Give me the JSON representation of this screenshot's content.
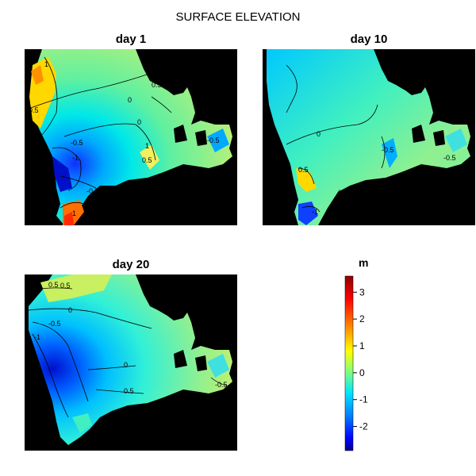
{
  "main_title": "SURFACE ELEVATION",
  "colorbar": {
    "label": "m"
  },
  "chart_data": {
    "type": "heatmap",
    "title": "SURFACE ELEVATION",
    "colorbar": {
      "label": "m",
      "ticks": [
        3,
        2,
        1,
        0,
        -1,
        -2
      ],
      "range": [
        -2.9,
        3.6
      ]
    },
    "colorscale": [
      "#00008b",
      "#0000ff",
      "#0080ff",
      "#00e5ff",
      "#7fff7f",
      "#ffff00",
      "#ff8000",
      "#ff0000",
      "#8b0000"
    ],
    "panels": [
      {
        "title": "day  1",
        "contours": [
          "1",
          "0.5",
          "0",
          "-0.5",
          "-1",
          "-0.5",
          "0.5",
          "1",
          "0",
          "0.5",
          "1",
          "-0.5"
        ]
      },
      {
        "title": "day  10",
        "contours": [
          "0",
          "-0.5",
          "0",
          "-1",
          "-0.5",
          "0.5"
        ]
      },
      {
        "title": "day  20",
        "contours": [
          "0.5",
          "0",
          "-0.5",
          "-1",
          "0",
          "0.5",
          "0.5",
          "-0.5"
        ]
      }
    ]
  }
}
